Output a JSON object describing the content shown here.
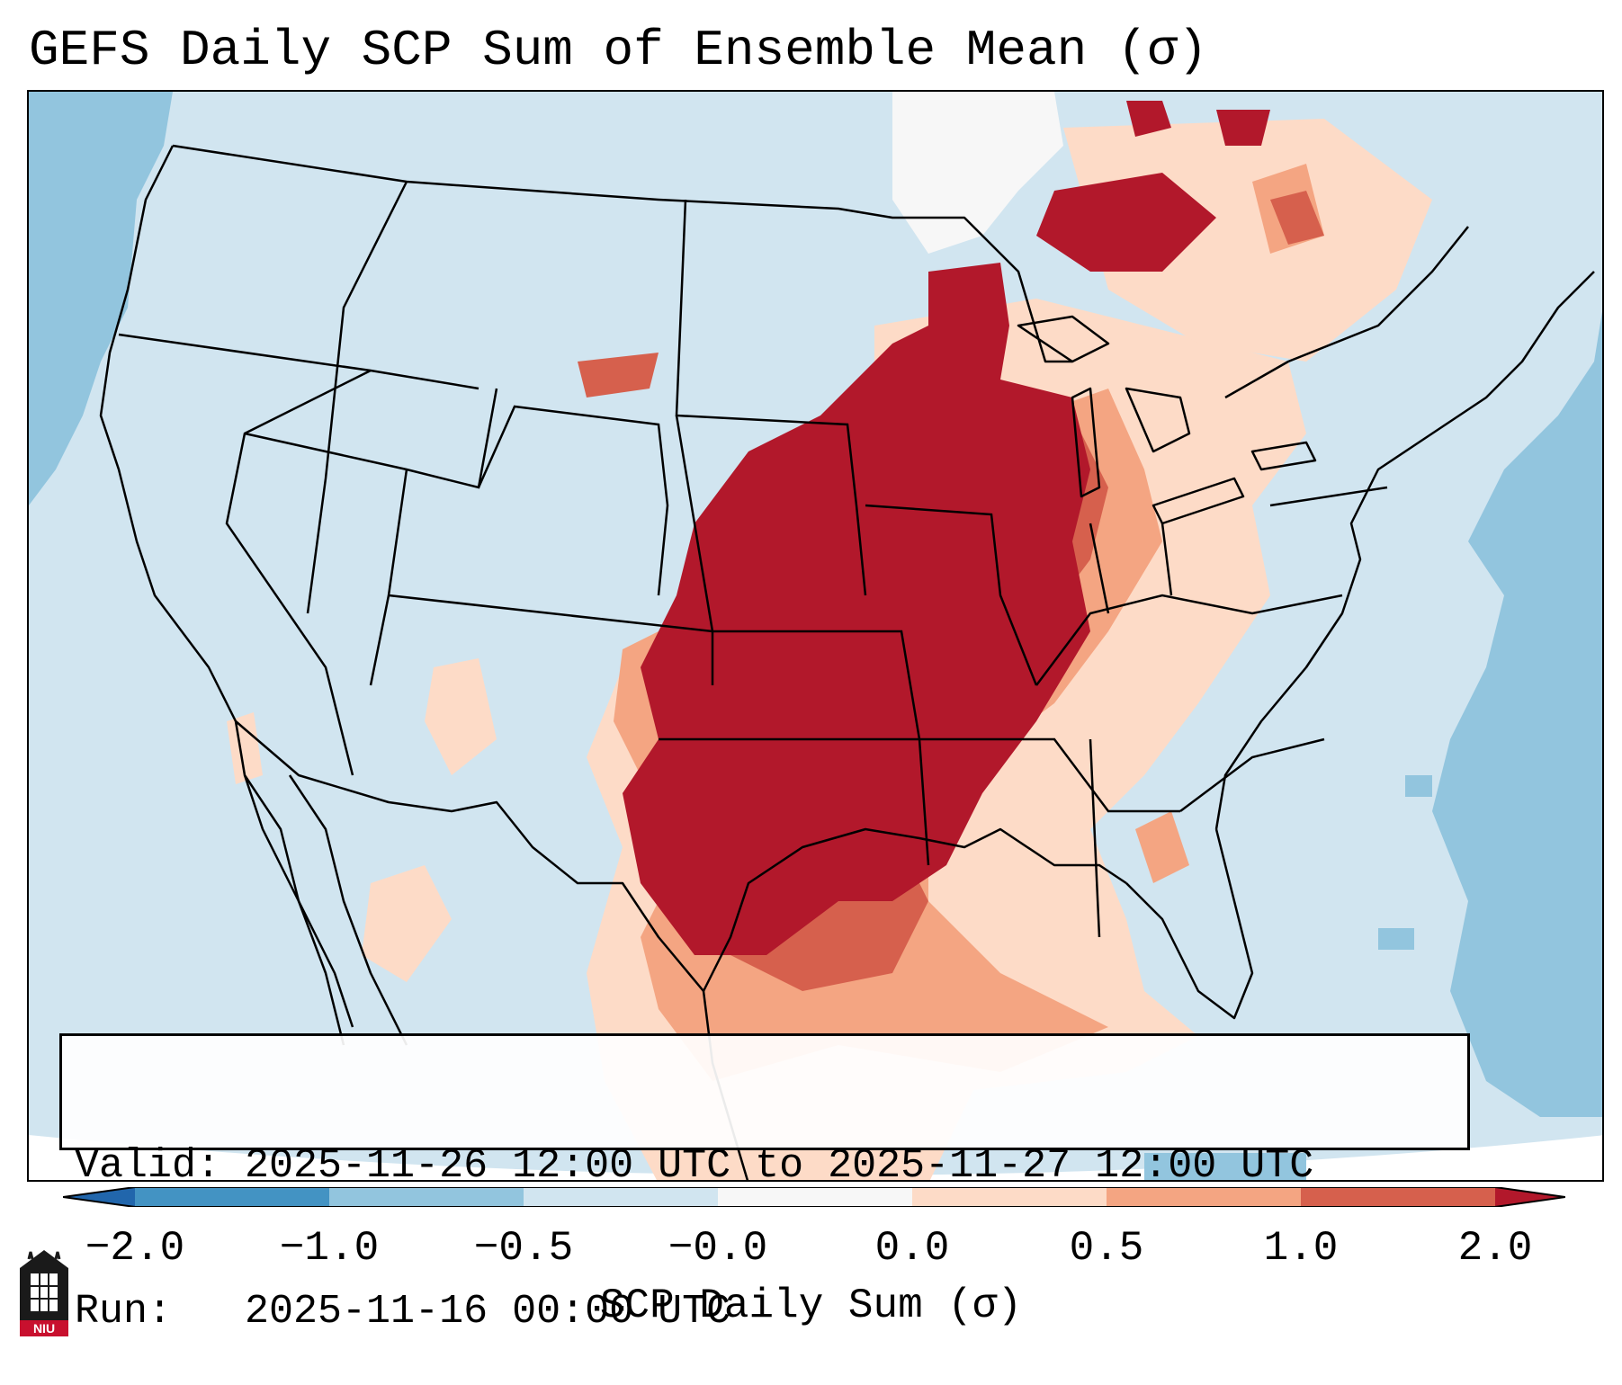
{
  "title": "GEFS Daily SCP Sum of Ensemble Mean (σ)",
  "info": {
    "valid_line": "Valid: 2025-11-26 12:00 UTC to 2025-11-27 12:00 UTC",
    "run_line": "Run:   2025-11-16 00:00 UTC"
  },
  "colorbar": {
    "label": "SCP Daily Sum (σ)",
    "ticks": [
      "−2.0",
      "−1.0",
      "−0.5",
      "−0.0",
      "0.0",
      "0.5",
      "1.0",
      "2.0"
    ],
    "bins": [
      {
        "range": "< -2.0",
        "color": "#2166ac"
      },
      {
        "range": "-2.0 to -1.0",
        "color": "#4393c3"
      },
      {
        "range": "-1.0 to -0.5",
        "color": "#92c5de"
      },
      {
        "range": "-0.5 to -0.0",
        "color": "#d1e5f0"
      },
      {
        "range": "-0.0 to 0.0",
        "color": "#f7f7f7"
      },
      {
        "range": "0.0 to 0.5",
        "color": "#fddbc7"
      },
      {
        "range": "0.5 to 1.0",
        "color": "#f4a582"
      },
      {
        "range": "1.0 to 2.0",
        "color": "#d6604d"
      },
      {
        "range": "> 2.0",
        "color": "#b2182b"
      }
    ]
  },
  "map": {
    "region": "Contiguous United States",
    "colors": {
      "background": "#d1e5f0",
      "light_blue": "#92c5de",
      "light_orange": "#fddbc7",
      "orange": "#f4a582",
      "red_orange": "#d6604d",
      "dark_red": "#b2182b"
    },
    "features": [
      {
        "name": "central-plains-midwest-maximum",
        "value_sigma": "> 2.0",
        "color": "#b2182b"
      },
      {
        "name": "ohio-valley-moderate",
        "value_sigma": "0.5 to 1.0",
        "color": "#f4a582"
      },
      {
        "name": "gulf-coast-weak",
        "value_sigma": "0.0 to 0.5",
        "color": "#fddbc7"
      },
      {
        "name": "atlantic-pacific-negative",
        "value_sigma": "-1.0 to -0.5",
        "color": "#92c5de"
      }
    ]
  },
  "logo": {
    "text": "NIU"
  }
}
